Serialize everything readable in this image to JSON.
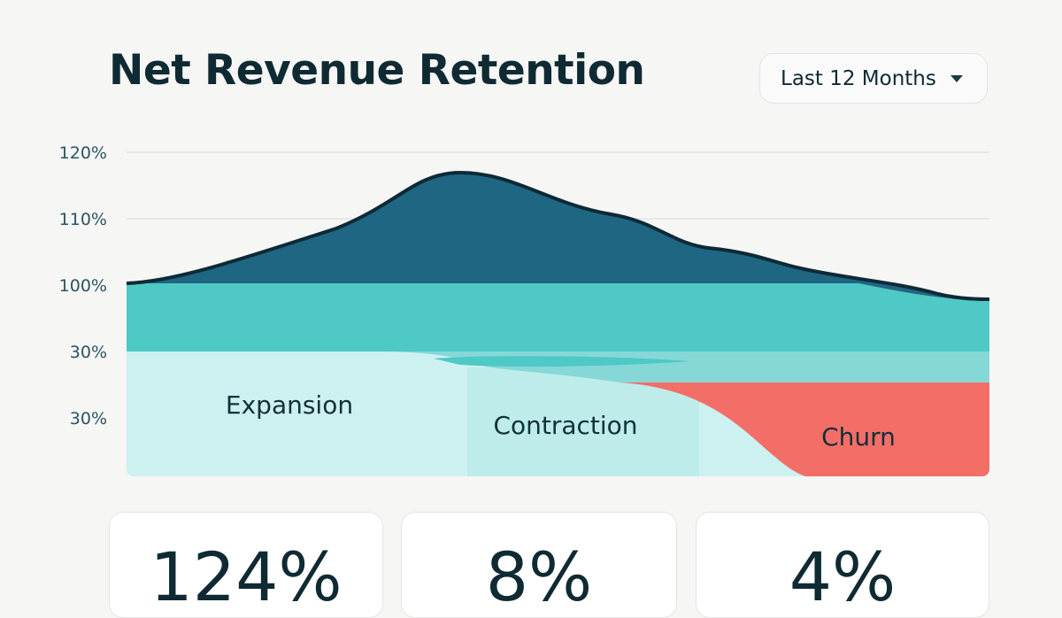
{
  "header": {
    "title": "Net Revenue Retention",
    "range_selector": "Last 12 Months"
  },
  "chart": {
    "axis_labels": [
      "120%",
      "110%",
      "100%",
      "30%",
      "30%"
    ],
    "area_labels": [
      "Expansion",
      "Contraction",
      "Churn"
    ]
  },
  "kpis": [
    {
      "value": "124%"
    },
    {
      "value": "8%"
    },
    {
      "value": "4%"
    }
  ]
}
